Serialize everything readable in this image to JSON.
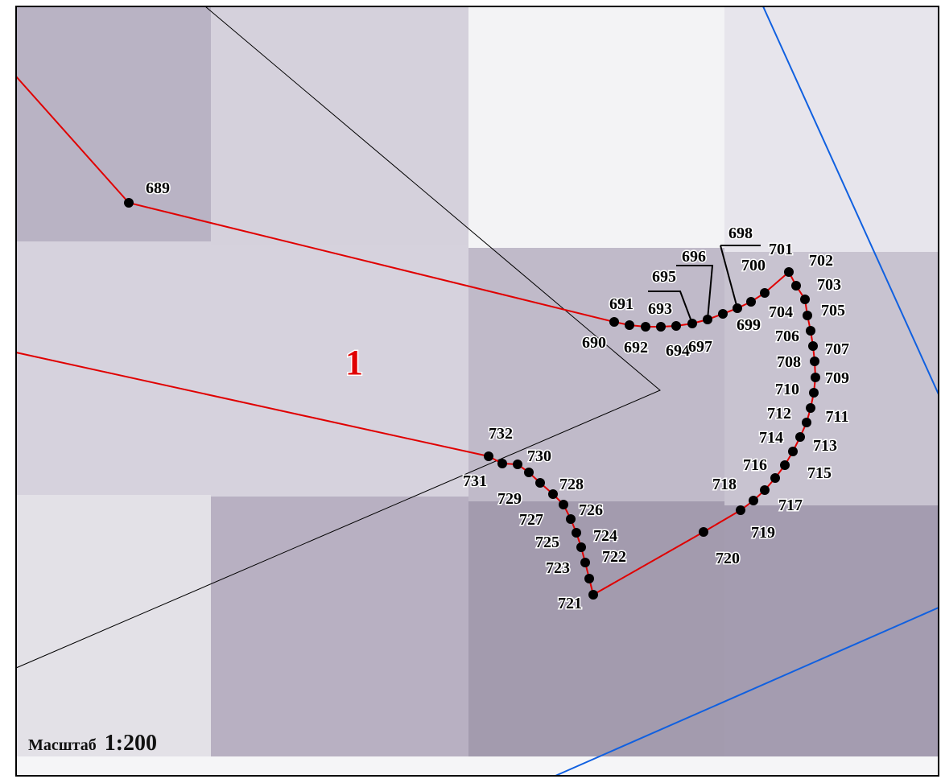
{
  "map": {
    "parcel_label": "1",
    "scale": {
      "label": "Масштаб",
      "value": "1:200"
    },
    "points": [
      "689",
      "690",
      "691",
      "692",
      "693",
      "694",
      "695",
      "696",
      "697",
      "698",
      "699",
      "700",
      "701",
      "702",
      "703",
      "704",
      "705",
      "706",
      "707",
      "708",
      "709",
      "710",
      "711",
      "712",
      "713",
      "714",
      "715",
      "716",
      "717",
      "718",
      "719",
      "720",
      "721",
      "722",
      "723",
      "724",
      "725",
      "726",
      "727",
      "728",
      "729",
      "730",
      "731",
      "732"
    ]
  }
}
